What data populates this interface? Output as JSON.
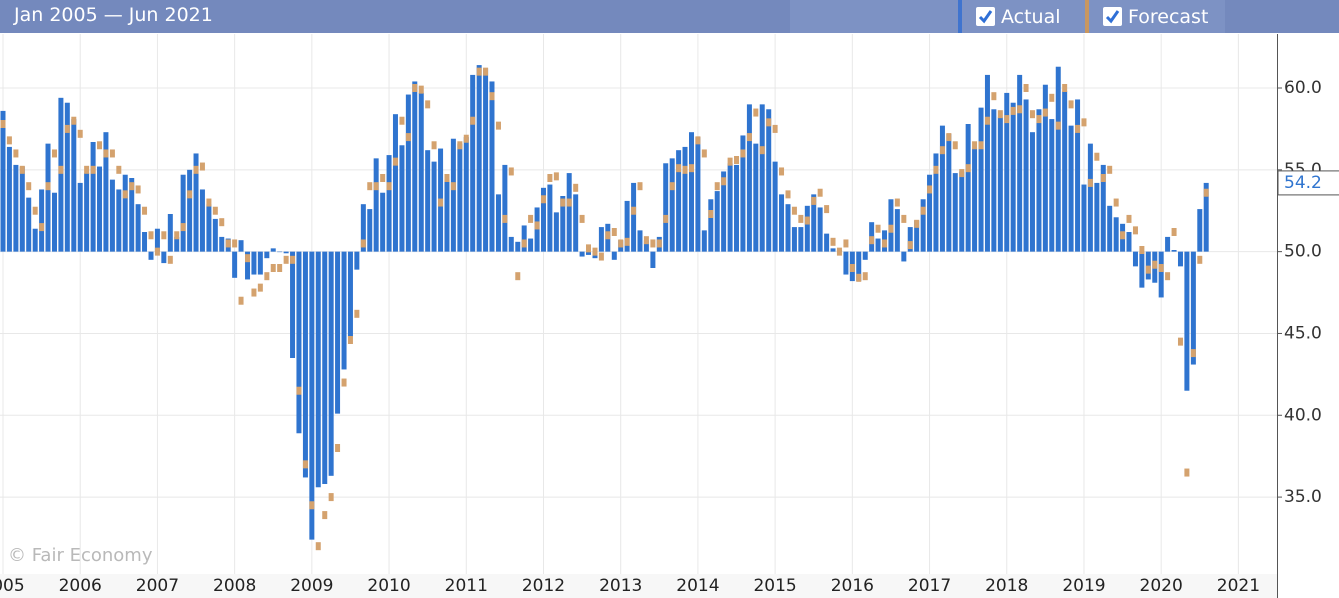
{
  "chart_data": {
    "type": "bar",
    "title": "Jan 2005 — Jun 2021",
    "watermark": "© Fair Economy",
    "x": [
      2005,
      2005.083,
      2005.167,
      2005.25,
      2005.333,
      2005.417,
      2005.5,
      2005.583,
      2005.667,
      2005.75,
      2005.833,
      2005.917,
      2006,
      2006.083,
      2006.167,
      2006.25,
      2006.333,
      2006.417,
      2006.5,
      2006.583,
      2006.667,
      2006.75,
      2006.833,
      2006.917,
      2007,
      2007.083,
      2007.167,
      2007.25,
      2007.333,
      2007.417,
      2007.5,
      2007.583,
      2007.667,
      2007.75,
      2007.833,
      2007.917,
      2008,
      2008.083,
      2008.167,
      2008.25,
      2008.333,
      2008.417,
      2008.5,
      2008.583,
      2008.667,
      2008.75,
      2008.833,
      2008.917,
      2009,
      2009.083,
      2009.167,
      2009.25,
      2009.333,
      2009.417,
      2009.5,
      2009.583,
      2009.667,
      2009.75,
      2009.833,
      2009.917,
      2010,
      2010.083,
      2010.167,
      2010.25,
      2010.333,
      2010.417,
      2010.5,
      2010.583,
      2010.667,
      2010.75,
      2010.833,
      2010.917,
      2011,
      2011.083,
      2011.167,
      2011.25,
      2011.333,
      2011.417,
      2011.5,
      2011.583,
      2011.667,
      2011.75,
      2011.833,
      2011.917,
      2012,
      2012.083,
      2012.167,
      2012.25,
      2012.333,
      2012.417,
      2012.5,
      2012.583,
      2012.667,
      2012.75,
      2012.833,
      2012.917,
      2013,
      2013.083,
      2013.167,
      2013.25,
      2013.333,
      2013.417,
      2013.5,
      2013.583,
      2013.667,
      2013.75,
      2013.833,
      2013.917,
      2014,
      2014.083,
      2014.167,
      2014.25,
      2014.333,
      2014.417,
      2014.5,
      2014.583,
      2014.667,
      2014.75,
      2014.833,
      2014.917,
      2015,
      2015.083,
      2015.167,
      2015.25,
      2015.333,
      2015.417,
      2015.5,
      2015.583,
      2015.667,
      2015.75,
      2015.833,
      2015.917,
      2016,
      2016.083,
      2016.167,
      2016.25,
      2016.333,
      2016.417,
      2016.5,
      2016.583,
      2016.667,
      2016.75,
      2016.833,
      2016.917,
      2017,
      2017.083,
      2017.167,
      2017.25,
      2017.333,
      2017.417,
      2017.5,
      2017.583,
      2017.667,
      2017.75,
      2017.833,
      2017.917,
      2018,
      2018.083,
      2018.167,
      2018.25,
      2018.333,
      2018.417,
      2018.5,
      2018.583,
      2018.667,
      2018.75,
      2018.833,
      2018.917,
      2019,
      2019.083,
      2019.167,
      2019.25,
      2019.333,
      2019.417,
      2019.5,
      2019.583,
      2019.667,
      2019.75,
      2019.833,
      2019.917,
      2020,
      2020.083,
      2020.167,
      2020.25,
      2020.333,
      2020.417,
      2020.5,
      2020.583
    ],
    "series": [
      {
        "name": "Actual",
        "type": "bar",
        "color": "#2f74cf",
        "values": [
          58.6,
          56.4,
          55.3,
          55.2,
          53.3,
          51.4,
          53.8,
          56.6,
          53.6,
          59.4,
          59.1,
          58.1,
          54.2,
          54.8,
          56.7,
          55.2,
          57.3,
          54.4,
          53.8,
          54.7,
          54.5,
          52.9,
          51.2,
          49.5,
          51.4,
          49.3,
          52.3,
          50.9,
          54.7,
          55.0,
          56.0,
          53.8,
          52.9,
          52.0,
          50.9,
          50.8,
          48.4,
          50.7,
          48.3,
          48.6,
          48.6,
          49.6,
          50.2,
          50.0,
          49.9,
          43.5,
          38.9,
          36.2,
          32.4,
          35.6,
          35.8,
          36.3,
          40.1,
          42.8,
          44.8,
          48.9,
          52.9,
          52.6,
          55.7,
          53.6,
          55.9,
          58.4,
          56.5,
          59.6,
          60.4,
          59.7,
          56.2,
          55.5,
          56.3,
          54.4,
          56.9,
          56.6,
          57.0,
          60.8,
          61.4,
          61.2,
          60.4,
          53.5,
          55.3,
          50.9,
          50.6,
          51.6,
          50.8,
          52.7,
          53.9,
          54.1,
          52.4,
          53.4,
          54.8,
          53.5,
          49.7,
          49.8,
          49.6,
          51.5,
          51.7,
          49.5,
          50.7,
          53.1,
          54.2,
          51.3,
          50.7,
          49.0,
          50.9,
          55.4,
          55.7,
          56.2,
          56.4,
          57.3,
          57.0,
          51.3,
          53.2,
          53.7,
          54.9,
          55.4,
          55.3,
          57.1,
          59.0,
          56.6,
          59.0,
          58.7,
          55.5,
          53.5,
          52.9,
          51.5,
          51.5,
          52.8,
          53.5,
          52.7,
          51.1,
          50.2,
          50.1,
          48.6,
          48.2,
          48.2,
          49.5,
          51.8,
          50.8,
          51.3,
          53.2,
          52.6,
          49.4,
          51.5,
          51.9,
          53.2,
          54.7,
          56.0,
          57.7,
          57.2,
          54.8,
          54.9,
          57.8,
          56.3,
          58.8,
          60.8,
          58.7,
          58.2,
          59.7,
          59.1,
          60.8,
          59.3,
          57.3,
          58.7,
          60.2,
          58.1,
          61.3,
          59.8,
          57.7,
          59.3,
          54.1,
          56.6,
          54.2,
          55.3,
          52.8,
          52.1,
          51.7,
          51.2,
          49.1,
          47.8,
          48.3,
          48.1,
          47.2,
          50.9,
          50.1,
          49.1,
          41.5,
          43.1,
          52.6,
          54.2
        ]
      },
      {
        "name": "Forecast",
        "type": "scatter",
        "color": "#d4a26e",
        "values": [
          57.8,
          56.8,
          56.0,
          55.0,
          54.0,
          52.5,
          51.5,
          54.0,
          56.0,
          55.0,
          57.5,
          58.0,
          57.2,
          55.0,
          55.0,
          56.5,
          56.0,
          56.0,
          55.0,
          53.5,
          54.0,
          53.8,
          52.5,
          51.0,
          50.0,
          51.0,
          49.5,
          51.0,
          51.5,
          53.5,
          55.0,
          55.2,
          53.0,
          52.5,
          51.8,
          50.5,
          50.5,
          47.0,
          49.6,
          47.5,
          47.8,
          48.5,
          49.0,
          49.0,
          49.5,
          49.5,
          41.5,
          37.0,
          34.5,
          32.0,
          33.9,
          35.0,
          38.0,
          42.0,
          44.6,
          46.2,
          50.5,
          54.0,
          54.0,
          54.5,
          54.0,
          55.5,
          58.0,
          57.0,
          60.0,
          59.9,
          59.0,
          56.5,
          53.0,
          54.5,
          54.0,
          56.5,
          56.9,
          58.0,
          61.0,
          61.0,
          59.5,
          57.7,
          52.0,
          54.9,
          48.5,
          50.5,
          52.0,
          51.6,
          53.2,
          54.5,
          54.6,
          53.0,
          53.0,
          53.9,
          52.0,
          50.2,
          50.0,
          49.7,
          51.0,
          51.2,
          50.5,
          50.6,
          52.5,
          54.0,
          50.7,
          50.5,
          50.5,
          52.0,
          54.0,
          55.1,
          55.0,
          55.1,
          56.8,
          56.0,
          52.3,
          54.0,
          54.3,
          55.5,
          55.6,
          56.0,
          57.0,
          58.5,
          56.2,
          57.9,
          57.5,
          54.9,
          53.5,
          52.5,
          52.0,
          51.9,
          53.1,
          53.6,
          52.6,
          50.6,
          50.0,
          50.5,
          49.0,
          48.4,
          48.5,
          50.7,
          51.4,
          50.5,
          51.4,
          53.0,
          52.0,
          50.4,
          51.7,
          52.5,
          53.8,
          55.0,
          56.2,
          57.0,
          56.5,
          54.8,
          55.1,
          56.5,
          56.5,
          58.0,
          59.5,
          58.4,
          58.1,
          58.6,
          58.7,
          60.0,
          58.4,
          58.1,
          58.5,
          59.4,
          57.7,
          60.0,
          59.0,
          57.5,
          57.9,
          54.2,
          55.8,
          54.5,
          55.0,
          53.0,
          51.0,
          52.0,
          51.3,
          50.1,
          48.9,
          49.2,
          49.0,
          48.5,
          51.2,
          44.5,
          36.5,
          43.8,
          49.5,
          53.6
        ]
      }
    ],
    "baseline": 50,
    "xlim": [
      2005,
      2021.5
    ],
    "xticks": [
      2005,
      2006,
      2007,
      2008,
      2009,
      2010,
      2011,
      2012,
      2013,
      2014,
      2015,
      2016,
      2017,
      2018,
      2019,
      2020,
      2021
    ],
    "ylim": [
      30.3,
      63.3
    ],
    "yticks": [
      {
        "value": 35,
        "label": "35.0"
      },
      {
        "value": 40,
        "label": "40.0"
      },
      {
        "value": 45,
        "label": "45.0"
      },
      {
        "value": 50,
        "label": "50.0"
      },
      {
        "value": 55,
        "label": "55.0"
      },
      {
        "value": 60,
        "label": "60.0"
      }
    ],
    "grid": true,
    "y_axis_side": "right"
  }
}
